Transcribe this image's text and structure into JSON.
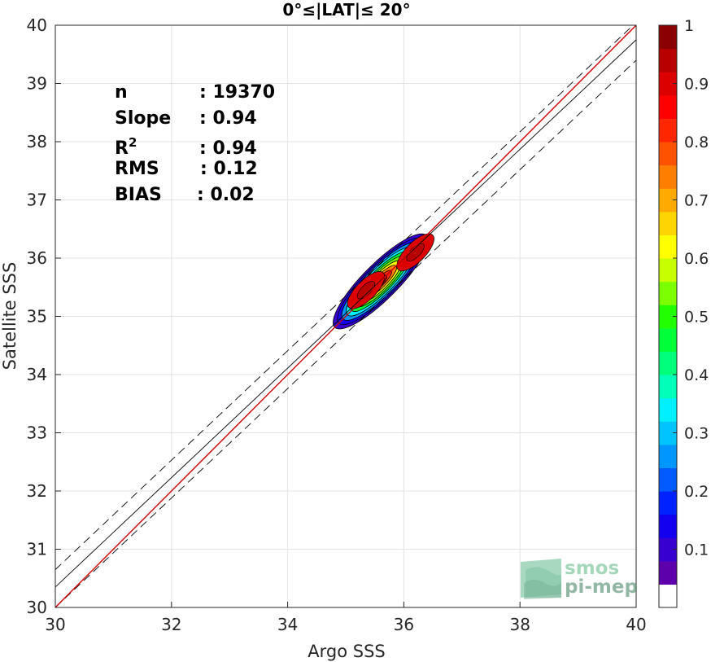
{
  "chart_data": {
    "type": "scatter",
    "subtype": "density-contour",
    "title": "0°≤|LAT|≤ 20°",
    "xlabel": "Argo SSS",
    "ylabel": "Satellite SSS",
    "xlim": [
      30,
      40
    ],
    "ylim": [
      30,
      40
    ],
    "xticks": [
      30,
      32,
      34,
      36,
      38,
      40
    ],
    "yticks": [
      30,
      31,
      32,
      33,
      34,
      35,
      36,
      37,
      38,
      39,
      40
    ],
    "grid": true,
    "stats": [
      {
        "label": "n",
        "value": ": 19370"
      },
      {
        "label": "Slope",
        "value": ": 0.94"
      },
      {
        "label": "R",
        "sup": "2",
        "value": ": 0.94"
      },
      {
        "label": "RMS",
        "value": ": 0.12"
      },
      {
        "label": "BIAS",
        "value": ": 0.02"
      }
    ],
    "density_center": {
      "x": 35.6,
      "y": 35.6
    },
    "density_peaks": [
      {
        "x": 35.35,
        "y": 35.45
      },
      {
        "x": 36.2,
        "y": 36.1
      }
    ],
    "contour_levels": [
      0.05,
      0.1,
      0.2,
      0.3,
      0.4,
      0.5,
      0.6,
      0.7,
      0.8,
      0.9
    ],
    "lines": {
      "identity": {
        "slope": 1,
        "intercept": 0,
        "color": "#cc0000"
      },
      "fit": {
        "x": [
          30,
          40
        ],
        "y": [
          30.35,
          39.75
        ],
        "color": "#000000"
      },
      "fit_upper": {
        "x": [
          30,
          40
        ],
        "y": [
          30.65,
          40.05
        ],
        "style": "dashed"
      },
      "fit_lower": {
        "x": [
          30,
          40
        ],
        "y": [
          30.0,
          39.4
        ],
        "style": "dashed"
      }
    },
    "colorbar": {
      "range": [
        0,
        1
      ],
      "ticks": [
        "0.1",
        "0.2",
        "0.3",
        "0.4",
        "0.5",
        "0.6",
        "0.7",
        "0.8",
        "0.9",
        "1"
      ],
      "colors": [
        "#ffffff",
        "#5d00ab",
        "#3700d0",
        "#1200ee",
        "#0022ff",
        "#005cff",
        "#0096ff",
        "#00c4ff",
        "#00f0ff",
        "#00ffb8",
        "#00ff7a",
        "#00ff38",
        "#22ff00",
        "#7cff00",
        "#c8ff00",
        "#ffff00",
        "#ffd500",
        "#ffaa00",
        "#ff7e00",
        "#ff5200",
        "#ff2600",
        "#ff0000",
        "#dc0000",
        "#b80000",
        "#8b0000"
      ]
    }
  },
  "logo": {
    "line1": "smos",
    "line2": "pi-mep"
  }
}
